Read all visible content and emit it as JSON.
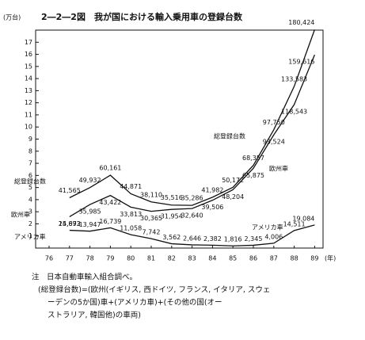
{
  "chart_data": {
    "type": "line",
    "title": "2―2―2図　我が国における輸入乗用車の登録台数",
    "y_unit": "(万台)",
    "x_unit": "(年)",
    "categories": [
      "76",
      "77",
      "78",
      "79",
      "80",
      "81",
      "82",
      "83",
      "84",
      "85",
      "86",
      "87",
      "88",
      "89"
    ],
    "series": [
      {
        "name": "総登録台数",
        "color": "#111111",
        "values": [
          null,
          4.1565,
          4.9932,
          6.0161,
          4.4871,
          3.811,
          3.5516,
          3.5286,
          4.1982,
          5.0172,
          6.8357,
          9.775,
          13.3583,
          18.0424
        ],
        "value_labels": [
          null,
          "41,565",
          "49,932",
          "60,161",
          "44,871",
          "38,110",
          "35,516",
          "35,286",
          "41,982",
          "50,172",
          "68,357",
          "97,750",
          "133,583",
          "180,424"
        ]
      },
      {
        "name": "欧州車",
        "color": "#111111",
        "values": [
          null,
          2.5893,
          3.5985,
          4.3422,
          3.3813,
          3.0365,
          3.1954,
          3.264,
          3.9506,
          4.8204,
          6.5875,
          9.3524,
          11.8543,
          15.9616
        ],
        "value_labels": [
          null,
          "25,893",
          "35,985",
          "43,422",
          "33,813",
          "30,365",
          "31,954",
          "32,640",
          "39,506",
          "48,204",
          "65,875",
          "93,524",
          "118,543",
          "159,616"
        ]
      },
      {
        "name": "アメリカ車",
        "color": "#111111",
        "values": [
          null,
          1.4672,
          1.3947,
          1.6739,
          1.1058,
          0.7742,
          0.3562,
          0.2646,
          0.2382,
          0.1816,
          0.2345,
          0.4006,
          1.4511,
          1.9084
        ],
        "value_labels": [
          null,
          "14,672",
          "13,947",
          "16,739",
          "11,058",
          "7,742",
          "3,562",
          "2,646",
          "2,382",
          "1,816",
          "2,345",
          "4,006",
          "14,511",
          "19,084"
        ]
      }
    ],
    "ylim": [
      0,
      18
    ],
    "yticks": [
      1,
      2,
      3,
      4,
      5,
      6,
      7,
      8,
      9,
      10,
      11,
      12,
      13,
      14,
      15,
      16,
      17
    ],
    "grid": false,
    "notes": [
      "注　日本自動車輸入組合調べ。",
      "(総登録台数)=(欧州(イギリス, 西ドイツ, フランス, イタリア, スウェ",
      "ーデンの5か国)車+(アメリカ車)+(その他の国(オー",
      "ストラリア, 韓国他)の車両)"
    ]
  }
}
